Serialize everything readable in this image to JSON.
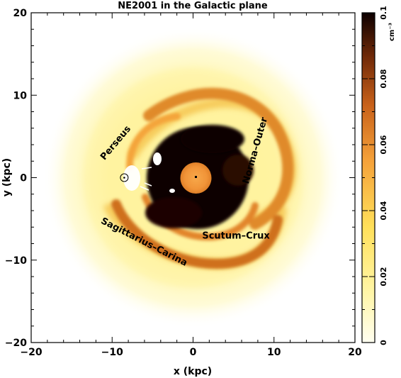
{
  "chart_data": {
    "type": "heatmap",
    "title": "NE2001 in the Galactic plane",
    "xlabel": "x (kpc)",
    "ylabel": "y (kpc)",
    "xlim": [
      -20,
      20
    ],
    "ylim": [
      -20,
      20
    ],
    "x_ticks": [
      -20,
      -10,
      0,
      10,
      20
    ],
    "y_ticks": [
      -20,
      -10,
      0,
      10,
      20
    ],
    "x_tick_labels": [
      "−20",
      "−10",
      "0",
      "10",
      "20"
    ],
    "y_tick_labels": [
      "−20",
      "−10",
      "0",
      "10",
      "20"
    ],
    "colorbar": {
      "label": "cm⁻³",
      "range": [
        0,
        0.1
      ],
      "ticks": [
        0,
        0.02,
        0.04,
        0.06,
        0.08,
        0.1
      ],
      "tick_labels": [
        "0",
        "0.02",
        "0.04",
        "0.06",
        "0.08",
        "0.1"
      ],
      "colors": [
        "#fffef0",
        "#fff27a",
        "#ffd23a",
        "#f59a2a",
        "#c8611a",
        "#6e2808",
        "#0c0000"
      ]
    },
    "sun_position": [
      -8.5,
      0
    ],
    "arms": [
      {
        "name": "Perseus",
        "label_at": [
          -9.3,
          4.0
        ],
        "angle": -50
      },
      {
        "name": "Norma–Outer",
        "label_at": [
          8.0,
          3.2
        ],
        "angle": -74
      },
      {
        "name": "Scutum–Crux",
        "label_at": [
          5.3,
          -7.4
        ],
        "angle": 0
      },
      {
        "name": "Sagittarius–Carina",
        "label_at": [
          -6.2,
          -8.1
        ],
        "angle": 27
      }
    ]
  }
}
